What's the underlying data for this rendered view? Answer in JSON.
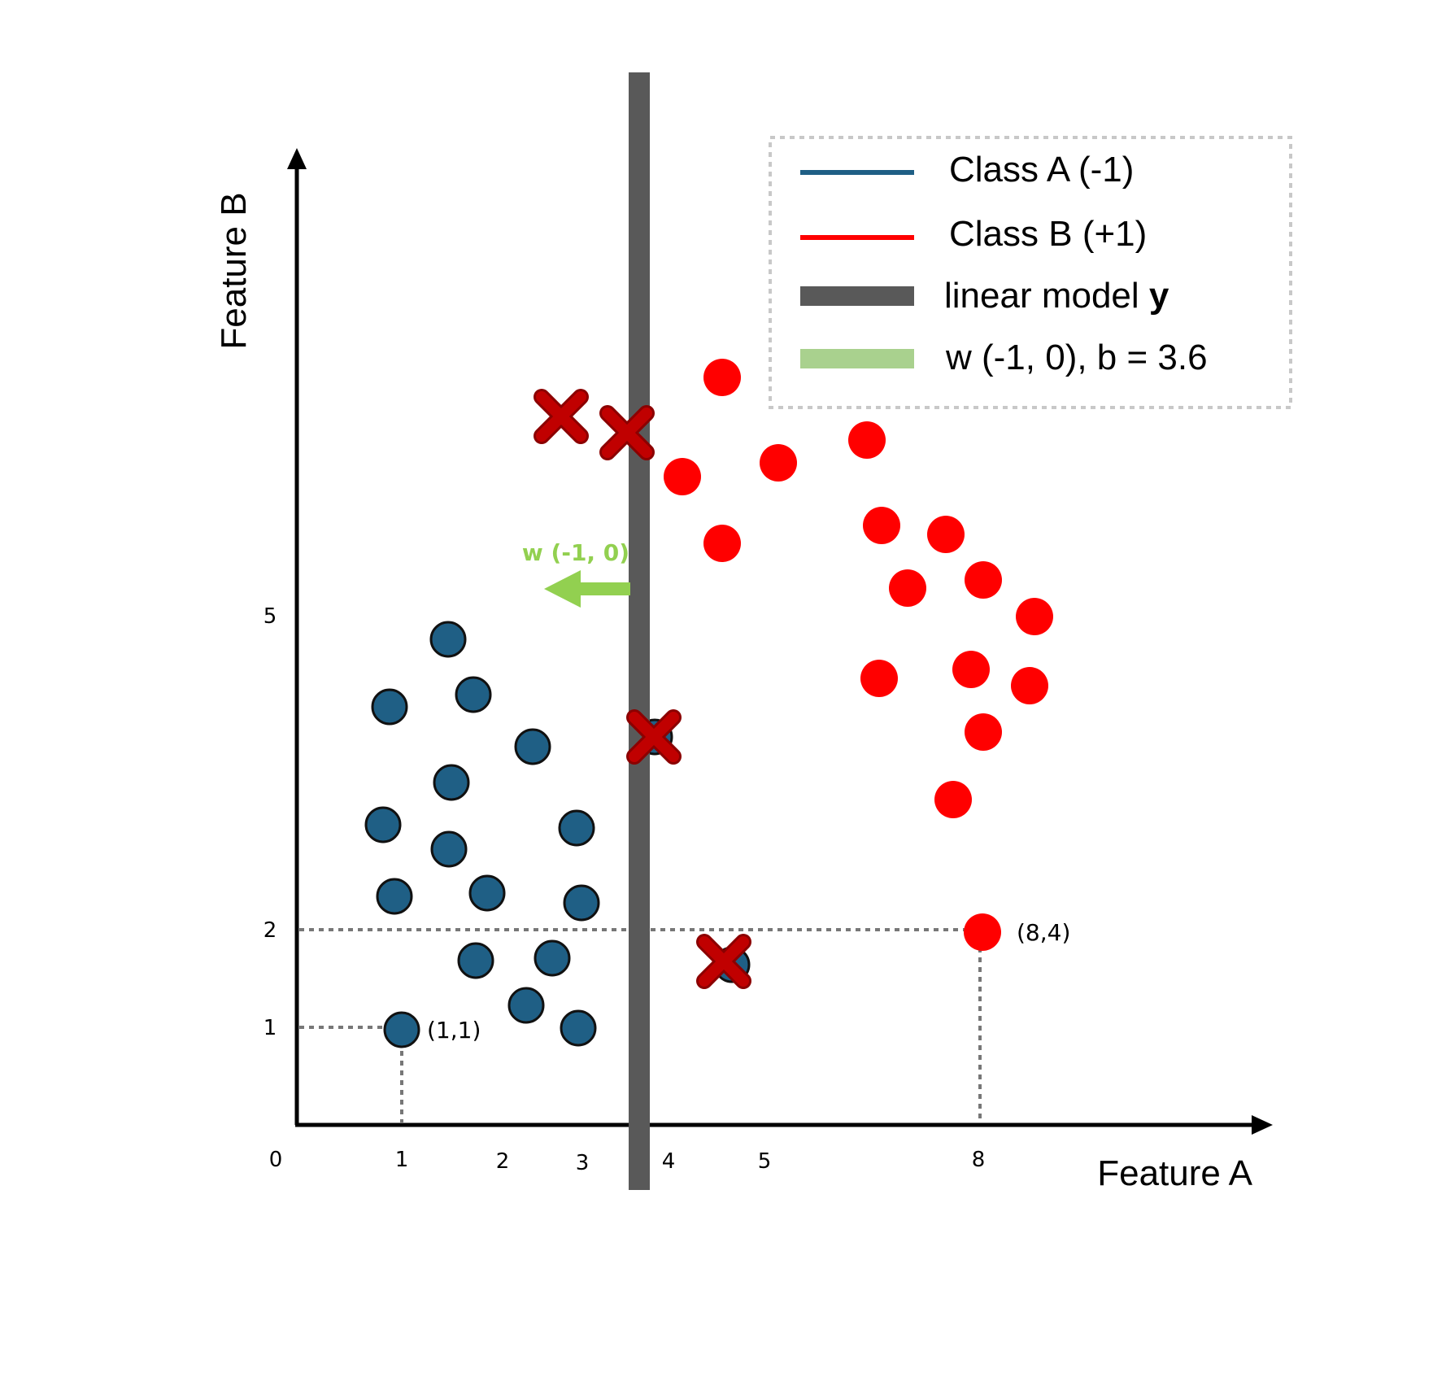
{
  "axes": {
    "x_title": "Feature A",
    "y_title": "Feature B",
    "x_ticks": [
      "0",
      "1",
      "2",
      "3",
      "4",
      "5",
      "8"
    ],
    "y_ticks": [
      "1",
      "2",
      "5"
    ]
  },
  "legend": {
    "items": [
      {
        "label": "Class A (-1)",
        "color": "#1f5f85"
      },
      {
        "label": "Class B (+1)",
        "color": "#ff0000"
      },
      {
        "label_prefix": "linear model ",
        "label_bold": "y",
        "color": "#595959"
      },
      {
        "label": "w (-1, 0), b = 3.6",
        "color": "#a9d18e"
      }
    ]
  },
  "annotations": {
    "point_1": "(1,1)",
    "point_2": "(8,4)",
    "weight_arrow": "w (-1, 0)"
  },
  "colors": {
    "class_a": "#1f5f85",
    "class_b": "#ff0000",
    "misclassified": "#c00000",
    "model_line": "#595959",
    "weight": "#92d050"
  }
}
